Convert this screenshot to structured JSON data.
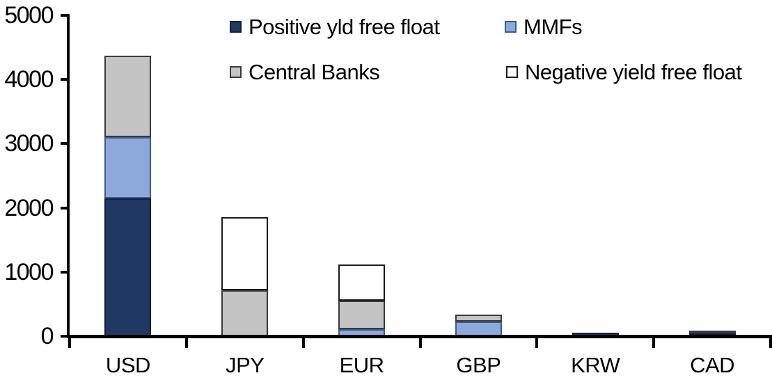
{
  "chart_data": {
    "type": "bar",
    "stacked": true,
    "title": "",
    "xlabel": "",
    "ylabel": "",
    "categories": [
      "USD",
      "JPY",
      "EUR",
      "GBP",
      "KRW",
      "CAD"
    ],
    "series": [
      {
        "name": "Positive yld free float",
        "color": "#203864",
        "border_color": "#141f38",
        "values": [
          2150,
          0,
          0,
          0,
          55,
          45
        ]
      },
      {
        "name": "MMFs",
        "color": "#8DA9DB",
        "border_color": "#3f5a8c",
        "values": [
          950,
          0,
          110,
          230,
          0,
          0
        ]
      },
      {
        "name": "Central Banks",
        "color": "#C4C4C4",
        "border_color": "#3a3a3a",
        "values": [
          1270,
          715,
          445,
          110,
          0,
          40
        ]
      },
      {
        "name": "Negative yield free float",
        "color": "#FFFFFF",
        "border_color": "#1a1a1a",
        "values": [
          0,
          1135,
          565,
          0,
          0,
          0
        ]
      }
    ],
    "totals_by_category": [
      4370,
      1850,
      1120,
      340,
      55,
      85
    ],
    "ylim": [
      0,
      5000
    ],
    "ytick_interval": 1000,
    "ytick_labels": [
      "0",
      "1000",
      "2000",
      "3000",
      "4000",
      "5000"
    ],
    "grid": false,
    "legend_position": "top-two-rows",
    "axis_color": "#000000",
    "background_color": "#FFFFFF"
  }
}
